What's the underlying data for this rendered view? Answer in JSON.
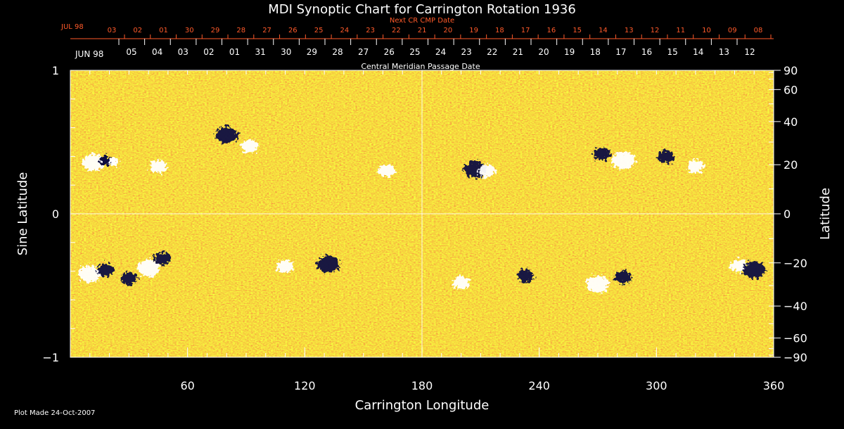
{
  "chart_data": {
    "type": "heatmap",
    "title": "MDI Synoptic Chart for Carrington Rotation 1936",
    "xlabel": "Carrington Longitude",
    "ylabel_left": "Sine Latitude",
    "ylabel_right": "Latitude",
    "xlim": [
      0,
      360
    ],
    "ylim": [
      -1,
      1
    ],
    "x_ticks": [
      60,
      120,
      180,
      240,
      300,
      360
    ],
    "y_ticks_left": [
      {
        "v": 1,
        "label": "1"
      },
      {
        "v": 0,
        "label": "0"
      },
      {
        "v": -1,
        "label": "−1"
      }
    ],
    "y_ticks_right": [
      90,
      60,
      40,
      20,
      0,
      -20,
      -40,
      -60,
      -90
    ],
    "top_axis_title": "Central Meridian Passage Date",
    "top_axis_month_start": "JUN 98",
    "top_axis_dates": [
      "05",
      "04",
      "03",
      "02",
      "01",
      "31",
      "30",
      "29",
      "28",
      "27",
      "26",
      "25",
      "24",
      "23",
      "22",
      "21",
      "20",
      "19",
      "18",
      "17",
      "16",
      "15",
      "14",
      "13",
      "12"
    ],
    "next_cr_title": "Next CR CMP Date",
    "next_cr_month_start": "JUL 98",
    "next_cr_dates": [
      "03",
      "02",
      "01",
      "30",
      "29",
      "28",
      "27",
      "26",
      "25",
      "24",
      "23",
      "22",
      "21",
      "20",
      "19",
      "18",
      "17",
      "16",
      "15",
      "14",
      "13",
      "12",
      "11",
      "10",
      "09",
      "08"
    ],
    "grid": "crosshair at longitude 180 and sine latitude 0",
    "colors": {
      "background_field": "#e8501c",
      "positive_polarity": "#ffffff",
      "negative_polarity": "#0a0a40",
      "next_cr_text": "#ff5a2a",
      "frame": "#ffffff"
    },
    "regions": [
      {
        "lon": 12,
        "sinlat": 0.36,
        "polarity": "positive"
      },
      {
        "lon": 20,
        "sinlat": 0.37,
        "polarity": "mixed"
      },
      {
        "lon": 45,
        "sinlat": 0.33,
        "polarity": "positive"
      },
      {
        "lon": 80,
        "sinlat": 0.55,
        "polarity": "negative"
      },
      {
        "lon": 92,
        "sinlat": 0.47,
        "polarity": "positive"
      },
      {
        "lon": 162,
        "sinlat": 0.3,
        "polarity": "positive"
      },
      {
        "lon": 207,
        "sinlat": 0.31,
        "polarity": "negative"
      },
      {
        "lon": 213,
        "sinlat": 0.3,
        "polarity": "positive"
      },
      {
        "lon": 272,
        "sinlat": 0.42,
        "polarity": "negative"
      },
      {
        "lon": 283,
        "sinlat": 0.37,
        "polarity": "positive"
      },
      {
        "lon": 305,
        "sinlat": 0.4,
        "polarity": "negative"
      },
      {
        "lon": 320,
        "sinlat": 0.33,
        "polarity": "positive"
      },
      {
        "lon": 10,
        "sinlat": -0.42,
        "polarity": "positive"
      },
      {
        "lon": 18,
        "sinlat": -0.39,
        "polarity": "negative"
      },
      {
        "lon": 30,
        "sinlat": -0.45,
        "polarity": "negative"
      },
      {
        "lon": 40,
        "sinlat": -0.38,
        "polarity": "positive"
      },
      {
        "lon": 47,
        "sinlat": -0.31,
        "polarity": "negative"
      },
      {
        "lon": 110,
        "sinlat": -0.37,
        "polarity": "positive"
      },
      {
        "lon": 132,
        "sinlat": -0.35,
        "polarity": "negative"
      },
      {
        "lon": 200,
        "sinlat": -0.48,
        "polarity": "positive"
      },
      {
        "lon": 233,
        "sinlat": -0.43,
        "polarity": "negative"
      },
      {
        "lon": 270,
        "sinlat": -0.49,
        "polarity": "positive"
      },
      {
        "lon": 283,
        "sinlat": -0.44,
        "polarity": "negative"
      },
      {
        "lon": 342,
        "sinlat": -0.36,
        "polarity": "positive"
      },
      {
        "lon": 350,
        "sinlat": -0.39,
        "polarity": "negative"
      }
    ]
  },
  "footer": {
    "plot_made": "Plot Made 24-Oct-2007"
  }
}
